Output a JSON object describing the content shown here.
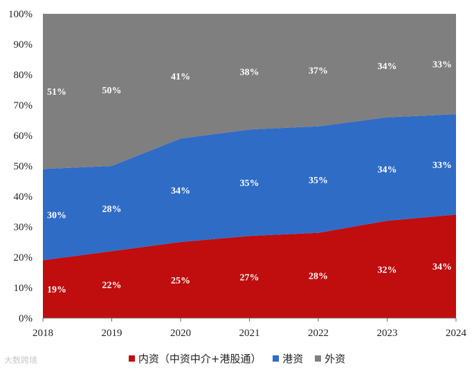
{
  "chart_data": {
    "type": "area",
    "stacked": true,
    "percent": true,
    "categories": [
      "2018",
      "2019",
      "2020",
      "2021",
      "2022",
      "2023",
      "2024"
    ],
    "series": [
      {
        "name": "内资（中资中介+港股通）",
        "values": [
          19,
          22,
          25,
          27,
          28,
          32,
          34
        ],
        "labels": [
          "19%",
          "22%",
          "25%",
          "27%",
          "28%",
          "32%",
          "34%"
        ],
        "color": "#c00d0d"
      },
      {
        "name": "港资",
        "values": [
          30,
          28,
          34,
          35,
          35,
          34,
          33
        ],
        "labels": [
          "30%",
          "28%",
          "34%",
          "35%",
          "35%",
          "34%",
          "33%"
        ],
        "color": "#2f6cc6"
      },
      {
        "name": "外资",
        "values": [
          51,
          50,
          41,
          38,
          37,
          34,
          33
        ],
        "labels": [
          "51%",
          "50%",
          "41%",
          "38%",
          "37%",
          "34%",
          "33%"
        ],
        "color": "#7f7f7f"
      }
    ],
    "yticks": [
      "0%",
      "10%",
      "20%",
      "30%",
      "40%",
      "50%",
      "60%",
      "70%",
      "80%",
      "90%",
      "100%"
    ],
    "ylim": [
      0,
      100
    ],
    "grid": false,
    "legend_position": "bottom"
  },
  "watermark": "大数跨境"
}
